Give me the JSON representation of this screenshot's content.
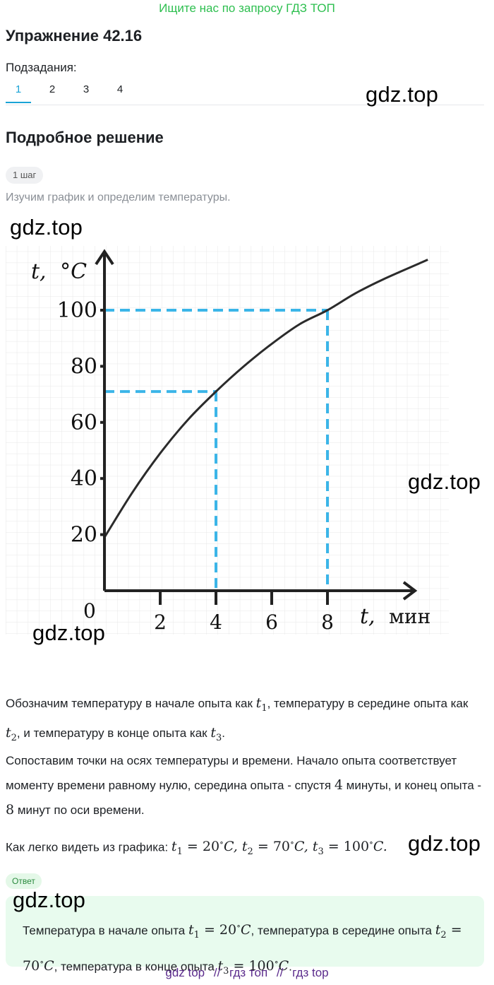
{
  "banner": "Ищите нас по запросу ГДЗ ТОП",
  "exercise_title": "Упражнение 42.16",
  "subtasks": {
    "label": "Подзадания:",
    "tabs": [
      "1",
      "2",
      "3",
      "4"
    ],
    "active": "1"
  },
  "watermark": "gdz.top",
  "section_title": "Подробное решение",
  "step_badge": "1 шаг",
  "hint": "Изучим график и определим температуры.",
  "chart_data": {
    "type": "line",
    "ylabel_var": "t,",
    "ylabel_unit": "°C",
    "xlabel_var": "t,",
    "xlabel_unit": "мин",
    "origin_label": "0",
    "x_ticks": [
      2,
      4,
      6,
      8
    ],
    "y_ticks": [
      20,
      40,
      60,
      80,
      100
    ],
    "xlim": [
      0,
      11
    ],
    "ylim": [
      0,
      120
    ],
    "grid": true,
    "curve": {
      "x": [
        0,
        1,
        2,
        3,
        4,
        5,
        6,
        7,
        8,
        9,
        10,
        11.6
      ],
      "y": [
        19,
        35,
        49,
        61,
        71,
        80,
        88,
        95,
        100,
        106,
        111,
        118
      ]
    },
    "guides": [
      {
        "x": 4,
        "y": 71
      },
      {
        "x": 8,
        "y": 100
      }
    ],
    "guide_color": "#3bb5e8"
  },
  "para1": {
    "a": "Обозначим температуру в начале опыта как ",
    "b": ", температуру в середине опыта как ",
    "c": ", и температуру в конце опыта как ",
    "d": "."
  },
  "para2": {
    "a": "Сопоставим точки на осях температуры и времени. Начало опыта соответствует моменту времени равному нулю, середина опыта - спустя ",
    "n1": "4",
    "b": " минуты, и конец опыта - ",
    "n2": "8",
    "c": " минут по оси времени."
  },
  "para3": {
    "a": "Как легко видеть из графика: ",
    "t1": "20",
    "t2": "70",
    "t3": "100"
  },
  "answer_badge": "Ответ",
  "answer": {
    "a": "Температура в начале опыта ",
    "t1": "20",
    "b": ", температура в середине опыта ",
    "t2": "70",
    "c": ", температура в конце опыта ",
    "t3": "100",
    "d": "."
  },
  "footer": {
    "items": [
      "gdz top",
      "//",
      "гдз топ",
      "//",
      "гдз top"
    ]
  }
}
